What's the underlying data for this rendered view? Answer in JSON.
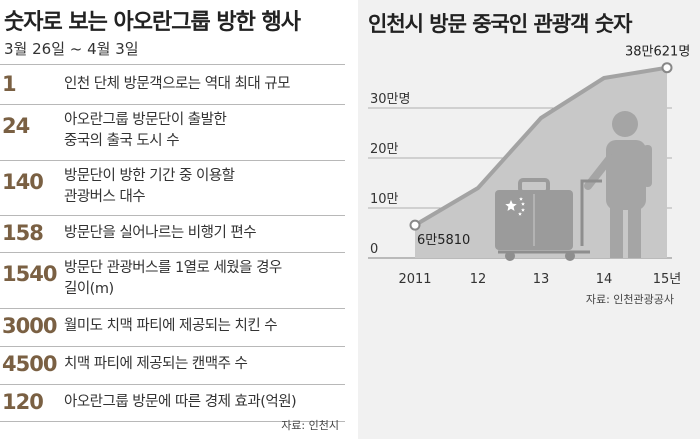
{
  "left": {
    "title": "숫자로 보는 아오란그룹 방한 행사",
    "subtitle": "3월 26일 ~ 4월 3일",
    "rows": [
      {
        "num": "1",
        "desc": "인천 단체 방문객으로는 역대 최대 규모"
      },
      {
        "num": "24",
        "desc": "아오란그룹 방문단이 출발한",
        "desc2": "중국의 출국 도시 수"
      },
      {
        "num": "140",
        "desc": "방문단이 방한 기간 중 이용할",
        "desc2": "관광버스 대수"
      },
      {
        "num": "158",
        "desc": "방문단을 실어나르는 비행기 편수"
      },
      {
        "num": "1540",
        "desc": "방문단 관광버스를 1열로 세웠을 경우",
        "desc2": "길이(m)"
      },
      {
        "num": "3000",
        "desc": "월미도 치맥 파티에 제공되는 치킨 수"
      },
      {
        "num": "4500",
        "desc": "치맥 파티에 제공되는 캔맥주 수"
      },
      {
        "num": "120",
        "desc": "아오란그룹 방문에 따른 경제 효과(억원)"
      }
    ],
    "source": "자료: 인천시"
  },
  "right": {
    "title": "인천시 방문 중국인 관광객 숫자",
    "source": "자료: 인천관광공사"
  },
  "colors": {
    "accent": "#7a6043",
    "area": "#c8c8c8",
    "line": "#a3a3a3",
    "grid": "#9a9a9a",
    "panel": "#f1f1f1"
  },
  "chart_data": {
    "type": "area",
    "title": "인천시 방문 중국인 관광객 숫자",
    "x": [
      "2011",
      "12",
      "13",
      "14",
      "15년"
    ],
    "values": [
      65810,
      140000,
      280000,
      360000,
      380621
    ],
    "ylim": [
      0,
      400000
    ],
    "yticks": [
      {
        "value": 0,
        "label": "0"
      },
      {
        "value": 100000,
        "label": "10만"
      },
      {
        "value": 200000,
        "label": "20만"
      },
      {
        "value": 300000,
        "label": "30만명"
      }
    ],
    "annotations": [
      {
        "index": 0,
        "label": "6만5810"
      },
      {
        "index": 4,
        "label": "38만621명"
      }
    ],
    "grid": true,
    "illustration": "traveler-with-luggage-cart-china-flag"
  }
}
